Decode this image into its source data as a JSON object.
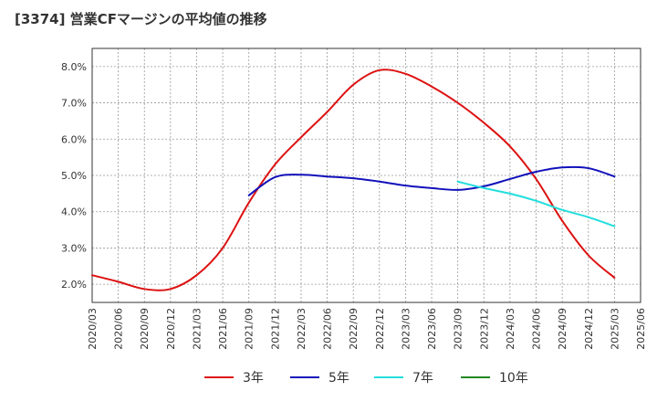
{
  "chart_data": {
    "type": "line",
    "title": "[3374]  営業CFマージンの平均値の推移",
    "y_ticks": [
      "2.0%",
      "3.0%",
      "4.0%",
      "5.0%",
      "6.0%",
      "7.0%",
      "8.0%"
    ],
    "ylim": [
      1.5,
      8.5
    ],
    "x_ticks": [
      "2020/03",
      "2020/06",
      "2020/09",
      "2020/12",
      "2021/03",
      "2021/06",
      "2021/09",
      "2021/12",
      "2022/03",
      "2022/06",
      "2022/09",
      "2022/12",
      "2023/03",
      "2023/06",
      "2023/09",
      "2023/12",
      "2024/03",
      "2024/06",
      "2024/09",
      "2024/12",
      "2025/03",
      "2025/06"
    ],
    "grid": true,
    "legend_position": "bottom",
    "series": [
      {
        "name": "3年",
        "color": "#dd1111",
        "points": [
          [
            "2020/03",
            2.25
          ],
          [
            "2020/06",
            2.07
          ],
          [
            "2020/09",
            1.87
          ],
          [
            "2020/12",
            1.87
          ],
          [
            "2021/03",
            2.25
          ],
          [
            "2021/06",
            3.0
          ],
          [
            "2021/09",
            4.25
          ],
          [
            "2021/12",
            5.3
          ],
          [
            "2022/03",
            6.05
          ],
          [
            "2022/06",
            6.75
          ],
          [
            "2022/09",
            7.5
          ],
          [
            "2022/12",
            7.9
          ],
          [
            "2023/03",
            7.8
          ],
          [
            "2023/06",
            7.45
          ],
          [
            "2023/09",
            7.0
          ],
          [
            "2023/12",
            6.45
          ],
          [
            "2024/03",
            5.8
          ],
          [
            "2024/06",
            4.9
          ],
          [
            "2024/09",
            3.75
          ],
          [
            "2024/12",
            2.8
          ],
          [
            "2025/03",
            2.18
          ]
        ]
      },
      {
        "name": "5年",
        "color": "#1111bb",
        "points": [
          [
            "2021/09",
            4.45
          ],
          [
            "2021/12",
            4.95
          ],
          [
            "2022/03",
            5.02
          ],
          [
            "2022/06",
            4.97
          ],
          [
            "2022/09",
            4.92
          ],
          [
            "2022/12",
            4.83
          ],
          [
            "2023/03",
            4.72
          ],
          [
            "2023/06",
            4.65
          ],
          [
            "2023/09",
            4.6
          ],
          [
            "2023/12",
            4.7
          ],
          [
            "2024/03",
            4.9
          ],
          [
            "2024/06",
            5.1
          ],
          [
            "2024/09",
            5.22
          ],
          [
            "2024/12",
            5.2
          ],
          [
            "2025/03",
            4.97
          ]
        ]
      },
      {
        "name": "7年",
        "color": "#22dddd",
        "points": [
          [
            "2023/09",
            4.83
          ],
          [
            "2023/12",
            4.65
          ],
          [
            "2024/03",
            4.5
          ],
          [
            "2024/06",
            4.3
          ],
          [
            "2024/09",
            4.05
          ],
          [
            "2024/12",
            3.85
          ],
          [
            "2025/03",
            3.6
          ]
        ]
      },
      {
        "name": "10年",
        "color": "#228822",
        "points": []
      }
    ]
  }
}
